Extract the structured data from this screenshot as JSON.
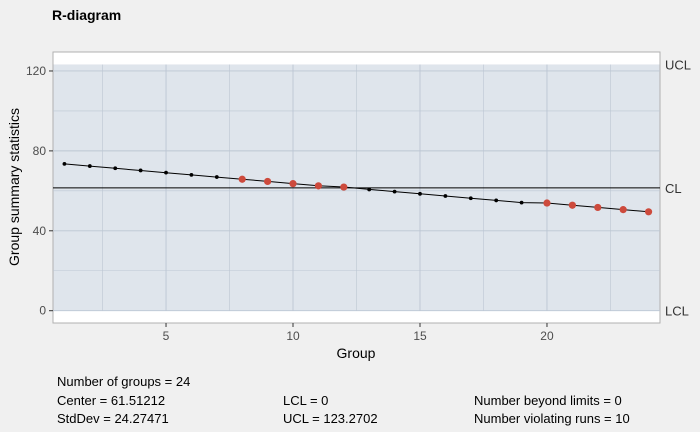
{
  "chart_data": {
    "type": "line",
    "title": "R-diagram",
    "xlabel": "Group",
    "ylabel": "Group summary statistics",
    "xlim": [
      0.55,
      24.45
    ],
    "ylim": [
      -6.16,
      129.5
    ],
    "x_ticks": [
      5,
      10,
      15,
      20
    ],
    "y_ticks": [
      0,
      40,
      80,
      120
    ],
    "control_limits": {
      "UCL": {
        "label": "UCL",
        "value": 123.2702
      },
      "CL": {
        "label": "CL",
        "value": 61.51212
      },
      "LCL": {
        "label": "LCL",
        "value": 0
      }
    },
    "series": [
      {
        "x": [
          1,
          2,
          3,
          4,
          5,
          6,
          7,
          8,
          9,
          10,
          11,
          12,
          13,
          14,
          15,
          16,
          17,
          18,
          19,
          20,
          21,
          22,
          23,
          24
        ],
        "values": [
          73.5,
          72.4,
          71.3,
          70.2,
          69.1,
          68.0,
          66.9,
          65.8,
          64.7,
          63.6,
          62.5,
          61.9,
          60.7,
          59.6,
          58.5,
          57.4,
          56.3,
          55.2,
          54.1,
          53.9,
          52.8,
          51.7,
          50.6,
          49.5
        ],
        "violating": [
          8,
          9,
          10,
          11,
          12,
          20,
          21,
          22,
          23,
          24
        ]
      }
    ],
    "colors": {
      "panel": "#dfe5ec",
      "band": "#e8ecf2",
      "grid": "#bcc6d3",
      "line": "#000000",
      "violation": "#cd4a3c"
    },
    "grid": true
  },
  "stats": {
    "groups": "Number of groups = 24",
    "center": "Center = 61.51212",
    "stddev": "StdDev = 24.27471",
    "lcl": "LCL = 0",
    "ucl": "UCL = 123.2702",
    "beyond": "Number beyond limits = 0",
    "violating": "Number violating runs = 10"
  }
}
